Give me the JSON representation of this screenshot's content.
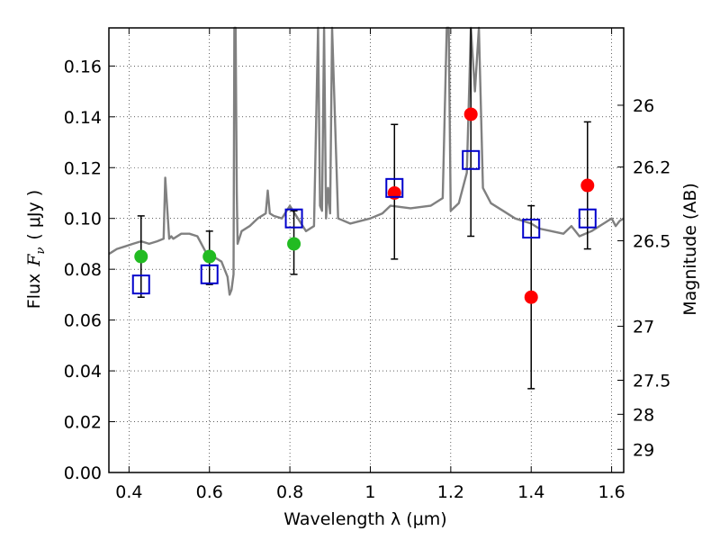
{
  "chart_data": {
    "type": "scatter",
    "xlabel": "Wavelength  λ (μm)",
    "ylabel": "Flux  F_ν  ( μJy )",
    "ylabel_parts": {
      "prefix": "Flux",
      "symbol_main": "F",
      "symbol_sub": "ν",
      "unit": "( μJy )"
    },
    "y2label": "Magnitude (AB)",
    "xlim": [
      0.35,
      1.63
    ],
    "ylim": [
      0.0,
      0.175
    ],
    "grid": true,
    "grid_style": "dotted",
    "x_ticks": [
      {
        "value": 0.4,
        "label": "0.4"
      },
      {
        "value": 0.6,
        "label": "0.6"
      },
      {
        "value": 0.8,
        "label": "0.8"
      },
      {
        "value": 1.0,
        "label": "1"
      },
      {
        "value": 1.2,
        "label": "1.2"
      },
      {
        "value": 1.4,
        "label": "1.4"
      },
      {
        "value": 1.6,
        "label": "1.6"
      }
    ],
    "y_ticks": [
      {
        "value": 0.0,
        "label": "0.00"
      },
      {
        "value": 0.02,
        "label": "0.02"
      },
      {
        "value": 0.04,
        "label": "0.04"
      },
      {
        "value": 0.06,
        "label": "0.06"
      },
      {
        "value": 0.08,
        "label": "0.08"
      },
      {
        "value": 0.1,
        "label": "0.10"
      },
      {
        "value": 0.12,
        "label": "0.12"
      },
      {
        "value": 0.14,
        "label": "0.14"
      },
      {
        "value": 0.16,
        "label": "0.16"
      }
    ],
    "y2_ticks": [
      {
        "label": "26",
        "magnitude": 26.0
      },
      {
        "label": "26.2",
        "magnitude": 26.2
      },
      {
        "label": "26.5",
        "magnitude": 26.5
      },
      {
        "label": "27",
        "magnitude": 27.0
      },
      {
        "label": "27.5",
        "magnitude": 27.5
      },
      {
        "label": "28",
        "magnitude": 28.0
      },
      {
        "label": "29",
        "magnitude": 29.0
      }
    ],
    "series": [
      {
        "style": "line",
        "color": "#808080",
        "x": [
          0.35,
          0.37,
          0.39,
          0.41,
          0.43,
          0.45,
          0.47,
          0.486,
          0.49,
          0.5,
          0.505,
          0.51,
          0.53,
          0.55,
          0.57,
          0.59,
          0.61,
          0.63,
          0.645,
          0.65,
          0.655,
          0.66,
          0.662,
          0.665,
          0.668,
          0.67,
          0.68,
          0.7,
          0.72,
          0.74,
          0.745,
          0.75,
          0.76,
          0.78,
          0.8,
          0.82,
          0.84,
          0.86,
          0.87,
          0.875,
          0.88,
          0.885,
          0.89,
          0.895,
          0.9,
          0.905,
          0.92,
          0.95,
          1.0,
          1.03,
          1.05,
          1.1,
          1.15,
          1.18,
          1.19,
          1.195,
          1.2,
          1.22,
          1.24,
          1.25,
          1.26,
          1.27,
          1.28,
          1.3,
          1.33,
          1.36,
          1.4,
          1.42,
          1.45,
          1.48,
          1.5,
          1.52,
          1.55,
          1.58,
          1.6,
          1.61,
          1.62,
          1.63
        ],
        "y": [
          0.086,
          0.088,
          0.089,
          0.09,
          0.091,
          0.09,
          0.091,
          0.092,
          0.116,
          0.092,
          0.093,
          0.092,
          0.094,
          0.094,
          0.093,
          0.087,
          0.085,
          0.083,
          0.077,
          0.07,
          0.072,
          0.078,
          0.175,
          0.175,
          0.11,
          0.09,
          0.095,
          0.097,
          0.1,
          0.102,
          0.111,
          0.102,
          0.101,
          0.1,
          0.105,
          0.1,
          0.095,
          0.097,
          0.175,
          0.105,
          0.103,
          0.175,
          0.1,
          0.112,
          0.102,
          0.175,
          0.1,
          0.098,
          0.1,
          0.102,
          0.105,
          0.104,
          0.105,
          0.108,
          0.175,
          0.175,
          0.103,
          0.106,
          0.118,
          0.175,
          0.15,
          0.175,
          0.112,
          0.106,
          0.103,
          0.1,
          0.098,
          0.096,
          0.095,
          0.094,
          0.097,
          0.093,
          0.095,
          0.098,
          0.1,
          0.097,
          0.099,
          0.1
        ]
      },
      {
        "style": "markers",
        "marker": "circle",
        "color": "#22bb22",
        "x": [
          0.43,
          0.6,
          0.81
        ],
        "y": [
          0.085,
          0.085,
          0.09
        ]
      },
      {
        "style": "markers",
        "marker": "circle",
        "color": "#ff0000",
        "x": [
          1.06,
          1.25,
          1.4,
          1.54
        ],
        "y": [
          0.11,
          0.141,
          0.069,
          0.113
        ]
      },
      {
        "style": "markers",
        "marker": "square-open",
        "color": "#0000cc",
        "x": [
          0.43,
          0.6,
          0.81,
          1.06,
          1.25,
          1.4,
          1.54
        ],
        "y": [
          0.074,
          0.078,
          0.1,
          0.112,
          0.123,
          0.096,
          0.1
        ]
      }
    ],
    "error_bars": {
      "color": "#000000",
      "x": [
        0.43,
        0.6,
        0.81,
        1.06,
        1.25,
        1.4,
        1.54
      ],
      "lo": [
        0.069,
        0.074,
        0.078,
        0.084,
        0.093,
        0.033,
        0.088
      ],
      "hi": [
        0.101,
        0.095,
        0.103,
        0.137,
        0.175,
        0.105,
        0.138
      ]
    }
  }
}
